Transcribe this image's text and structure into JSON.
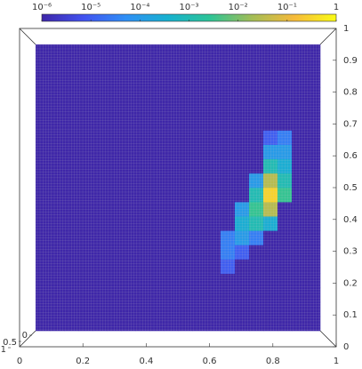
{
  "chart_data": {
    "type": "surface",
    "colorbar": {
      "clim": [
        1e-06,
        1
      ],
      "log": true,
      "colors": [
        "#3e26a8",
        "#4253f0",
        "#2f8ff5",
        "#17b1cf",
        "#2dc496",
        "#a3bd56",
        "#f6ba3b",
        "#f9fb15"
      ],
      "ticks": [
        {
          "value": 1e-06,
          "label": "10⁻⁶"
        },
        {
          "value": 1e-05,
          "label": "10⁻⁵"
        },
        {
          "value": 0.0001,
          "label": "10⁻⁴"
        },
        {
          "value": 0.001,
          "label": "10⁻³"
        },
        {
          "value": 0.01,
          "label": "10⁻²"
        },
        {
          "value": 0.1,
          "label": "10⁻¹"
        },
        1
      ]
    },
    "xlim": [
      0,
      1
    ],
    "xticks": [
      0,
      0.2,
      0.4,
      0.6,
      0.8,
      1
    ],
    "ylim": [
      0,
      1
    ],
    "yticks": [
      0,
      0.1,
      0.2,
      0.3,
      0.4,
      0.5,
      0.6,
      0.7,
      0.8,
      0.9,
      1
    ],
    "zlim": [
      0,
      1
    ],
    "zticks": [
      0,
      0.5,
      1
    ],
    "z": [
      [
        1e-06,
        1e-06,
        1e-06,
        1e-06,
        1e-06,
        1e-06,
        1e-06,
        1e-06,
        1e-06,
        1e-06,
        1e-06,
        1e-06,
        1e-06,
        1e-06,
        1e-06,
        1e-06,
        1e-06,
        1e-06,
        1e-06,
        1e-06
      ],
      [
        1e-06,
        1e-06,
        1e-06,
        1e-06,
        1e-06,
        1e-06,
        1e-06,
        1e-06,
        1e-06,
        1e-06,
        1e-06,
        1e-06,
        1e-06,
        1e-06,
        1e-06,
        1e-06,
        1e-06,
        1e-06,
        1e-06,
        1e-06
      ],
      [
        1e-06,
        1e-06,
        1e-06,
        1e-06,
        1e-06,
        1e-06,
        1e-06,
        1e-06,
        1e-06,
        1e-06,
        1e-06,
        1e-06,
        1e-06,
        1e-06,
        1e-06,
        1e-06,
        1e-06,
        1e-06,
        1e-06,
        1e-06
      ],
      [
        1e-06,
        1e-06,
        1e-06,
        1e-06,
        1e-06,
        1e-06,
        1e-06,
        1e-06,
        1e-06,
        1e-06,
        1e-06,
        1e-06,
        1e-06,
        1e-06,
        1e-06,
        1e-06,
        1e-06,
        1e-06,
        1e-06,
        1e-06
      ],
      [
        1e-06,
        1e-06,
        1e-06,
        1e-06,
        1e-06,
        1e-06,
        1e-06,
        1e-06,
        1e-06,
        1e-06,
        1e-06,
        1e-06,
        1e-06,
        1e-05,
        1e-06,
        1e-06,
        1e-06,
        1e-06,
        1e-06,
        1e-06
      ],
      [
        1e-06,
        1e-06,
        1e-06,
        1e-06,
        1e-06,
        1e-06,
        1e-06,
        1e-06,
        1e-06,
        1e-06,
        1e-06,
        1e-06,
        1e-06,
        3e-05,
        1e-05,
        1e-06,
        1e-06,
        1e-06,
        1e-06,
        1e-06
      ],
      [
        1e-06,
        1e-06,
        1e-06,
        1e-06,
        1e-06,
        1e-06,
        1e-06,
        1e-06,
        1e-06,
        1e-06,
        1e-06,
        1e-06,
        1e-06,
        3e-05,
        0.0001,
        3e-05,
        1e-06,
        1e-06,
        1e-06,
        1e-06
      ],
      [
        1e-06,
        1e-06,
        1e-06,
        1e-06,
        1e-06,
        1e-06,
        1e-06,
        1e-06,
        1e-06,
        1e-06,
        1e-06,
        1e-06,
        1e-06,
        1e-06,
        0.0003,
        0.001,
        0.0003,
        1e-06,
        1e-06,
        1e-06
      ],
      [
        1e-06,
        1e-06,
        1e-06,
        1e-06,
        1e-06,
        1e-06,
        1e-06,
        1e-06,
        1e-06,
        1e-06,
        1e-06,
        1e-06,
        1e-06,
        1e-06,
        0.0001,
        0.003,
        0.03,
        1e-06,
        1e-06,
        1e-06
      ],
      [
        1e-06,
        1e-06,
        1e-06,
        1e-06,
        1e-06,
        1e-06,
        1e-06,
        1e-06,
        1e-06,
        1e-06,
        1e-06,
        1e-06,
        1e-06,
        1e-06,
        1e-06,
        0.001,
        0.3,
        0.003,
        1e-06,
        1e-06
      ],
      [
        1e-06,
        1e-06,
        1e-06,
        1e-06,
        1e-06,
        1e-06,
        1e-06,
        1e-06,
        1e-06,
        1e-06,
        1e-06,
        1e-06,
        1e-06,
        1e-06,
        1e-06,
        0.0001,
        0.03,
        0.001,
        1e-06,
        1e-06
      ],
      [
        1e-06,
        1e-06,
        1e-06,
        1e-06,
        1e-06,
        1e-06,
        1e-06,
        1e-06,
        1e-06,
        1e-06,
        1e-06,
        1e-06,
        1e-06,
        1e-06,
        1e-06,
        1e-06,
        0.001,
        0.0003,
        1e-06,
        1e-06
      ],
      [
        1e-06,
        1e-06,
        1e-06,
        1e-06,
        1e-06,
        1e-06,
        1e-06,
        1e-06,
        1e-06,
        1e-06,
        1e-06,
        1e-06,
        1e-06,
        1e-06,
        1e-06,
        1e-06,
        0.0001,
        0.0001,
        1e-06,
        1e-06
      ],
      [
        1e-06,
        1e-06,
        1e-06,
        1e-06,
        1e-06,
        1e-06,
        1e-06,
        1e-06,
        1e-06,
        1e-06,
        1e-06,
        1e-06,
        1e-06,
        1e-06,
        1e-06,
        1e-06,
        1e-05,
        3e-05,
        1e-06,
        1e-06
      ],
      [
        1e-06,
        1e-06,
        1e-06,
        1e-06,
        1e-06,
        1e-06,
        1e-06,
        1e-06,
        1e-06,
        1e-06,
        1e-06,
        1e-06,
        1e-06,
        1e-06,
        1e-06,
        1e-06,
        1e-06,
        1e-06,
        1e-06,
        1e-06
      ],
      [
        1e-06,
        1e-06,
        1e-06,
        1e-06,
        1e-06,
        1e-06,
        1e-06,
        1e-06,
        1e-06,
        1e-06,
        1e-06,
        1e-06,
        1e-06,
        1e-06,
        1e-06,
        1e-06,
        1e-06,
        1e-06,
        1e-06,
        1e-06
      ],
      [
        1e-06,
        1e-06,
        1e-06,
        1e-06,
        1e-06,
        1e-06,
        1e-06,
        1e-06,
        1e-06,
        1e-06,
        1e-06,
        1e-06,
        1e-06,
        1e-06,
        1e-06,
        1e-06,
        1e-06,
        1e-06,
        1e-06,
        1e-06
      ],
      [
        1e-06,
        1e-06,
        1e-06,
        1e-06,
        1e-06,
        1e-06,
        1e-06,
        1e-06,
        1e-06,
        1e-06,
        1e-06,
        1e-06,
        1e-06,
        1e-06,
        1e-06,
        1e-06,
        1e-06,
        1e-06,
        1e-06,
        1e-06
      ],
      [
        1e-06,
        1e-06,
        1e-06,
        1e-06,
        1e-06,
        1e-06,
        1e-06,
        1e-06,
        1e-06,
        1e-06,
        1e-06,
        1e-06,
        1e-06,
        1e-06,
        1e-06,
        1e-06,
        1e-06,
        1e-06,
        1e-06,
        1e-06
      ],
      [
        1e-06,
        1e-06,
        1e-06,
        1e-06,
        1e-06,
        1e-06,
        1e-06,
        1e-06,
        1e-06,
        1e-06,
        1e-06,
        1e-06,
        1e-06,
        1e-06,
        1e-06,
        1e-06,
        1e-06,
        1e-06,
        1e-06,
        1e-06
      ]
    ]
  }
}
